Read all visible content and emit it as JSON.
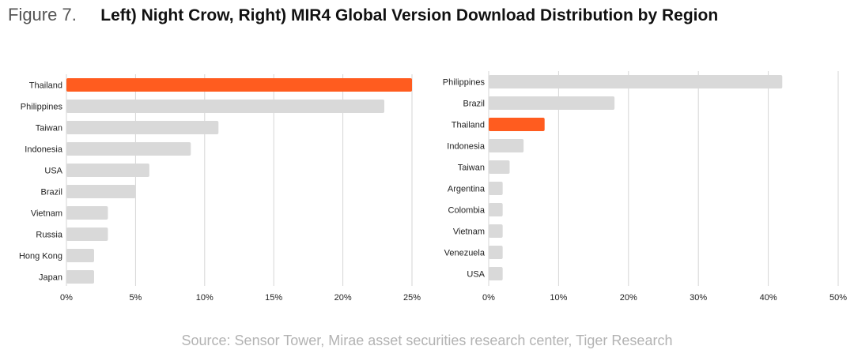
{
  "figure": {
    "label": "Figure 7.",
    "title": "Left) Night Crow, Right) MIR4 Global Version Download Distribution by Region"
  },
  "source": "Source: Sensor Tower, Mirae asset securities research center, Tiger Research",
  "colors": {
    "highlight": "#ff5c1f",
    "bar": "#d9d9d9",
    "grid": "#d6d6d6"
  },
  "chart_data": [
    {
      "type": "bar",
      "orientation": "horizontal",
      "name": "Night Crow",
      "categories": [
        "Thailand",
        "Philippines",
        "Taiwan",
        "Indonesia",
        "USA",
        "Brazil",
        "Vietnam",
        "Russia",
        "Hong Kong",
        "Japan"
      ],
      "values": [
        25,
        23,
        11,
        9,
        6,
        5,
        3,
        3,
        2,
        2
      ],
      "highlight": "Thailand",
      "xlim": [
        0,
        25
      ],
      "xticks": [
        0,
        5,
        10,
        15,
        20,
        25
      ],
      "xtick_labels": [
        "0%",
        "5%",
        "10%",
        "15%",
        "20%",
        "25%"
      ],
      "unit": "%",
      "grid": true
    },
    {
      "type": "bar",
      "orientation": "horizontal",
      "name": "MIR4",
      "categories": [
        "Philippines",
        "Brazil",
        "Thailand",
        "Indonesia",
        "Taiwan",
        "Argentina",
        "Colombia",
        "Vietnam",
        "Venezuela",
        "USA"
      ],
      "values": [
        42,
        18,
        8,
        5,
        3,
        2,
        2,
        2,
        2,
        2
      ],
      "highlight": "Thailand",
      "xlim": [
        0,
        50
      ],
      "xticks": [
        0,
        10,
        20,
        30,
        40,
        50
      ],
      "xtick_labels": [
        "0%",
        "10%",
        "20%",
        "30%",
        "40%",
        "50%"
      ],
      "unit": "%",
      "grid": true
    }
  ]
}
